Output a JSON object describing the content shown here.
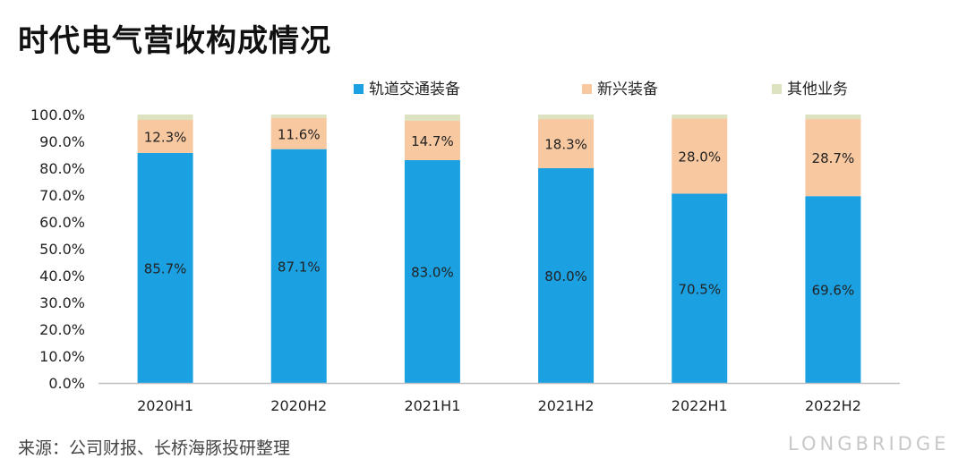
{
  "title": "时代电气营收构成情况",
  "source": "来源：公司财报、长桥海豚投研整理",
  "watermark": "LONGBRIDGE",
  "colors": {
    "rail": "#1ba1e2",
    "emerging": "#f8c8a0",
    "other": "#dde3c0",
    "axis": "#bfbfbf",
    "text": "#222222"
  },
  "chart_data": {
    "type": "bar",
    "stacked": true,
    "title": "时代电气营收构成情况",
    "categories": [
      "2020H1",
      "2020H2",
      "2021H1",
      "2021H2",
      "2022H1",
      "2022H2"
    ],
    "series": [
      {
        "name": "轨道交通装备",
        "values": [
          85.7,
          87.1,
          83.0,
          80.0,
          70.5,
          69.6
        ],
        "labels": [
          "85.7%",
          "87.1%",
          "83.0%",
          "80.0%",
          "70.5%",
          "69.6%"
        ]
      },
      {
        "name": "新兴装备",
        "values": [
          12.3,
          11.6,
          14.7,
          18.3,
          28.0,
          28.7
        ],
        "labels": [
          "12.3%",
          "11.6%",
          "14.7%",
          "18.3%",
          "28.0%",
          "28.7%"
        ]
      },
      {
        "name": "其他业务",
        "values": [
          2.0,
          1.3,
          2.3,
          1.7,
          1.5,
          1.7
        ]
      }
    ],
    "ylim": [
      0,
      100
    ],
    "yticks": [
      "0.0%",
      "10.0%",
      "20.0%",
      "30.0%",
      "40.0%",
      "50.0%",
      "60.0%",
      "70.0%",
      "80.0%",
      "90.0%",
      "100.0%"
    ],
    "legend_position": "top-right",
    "grid": false
  }
}
